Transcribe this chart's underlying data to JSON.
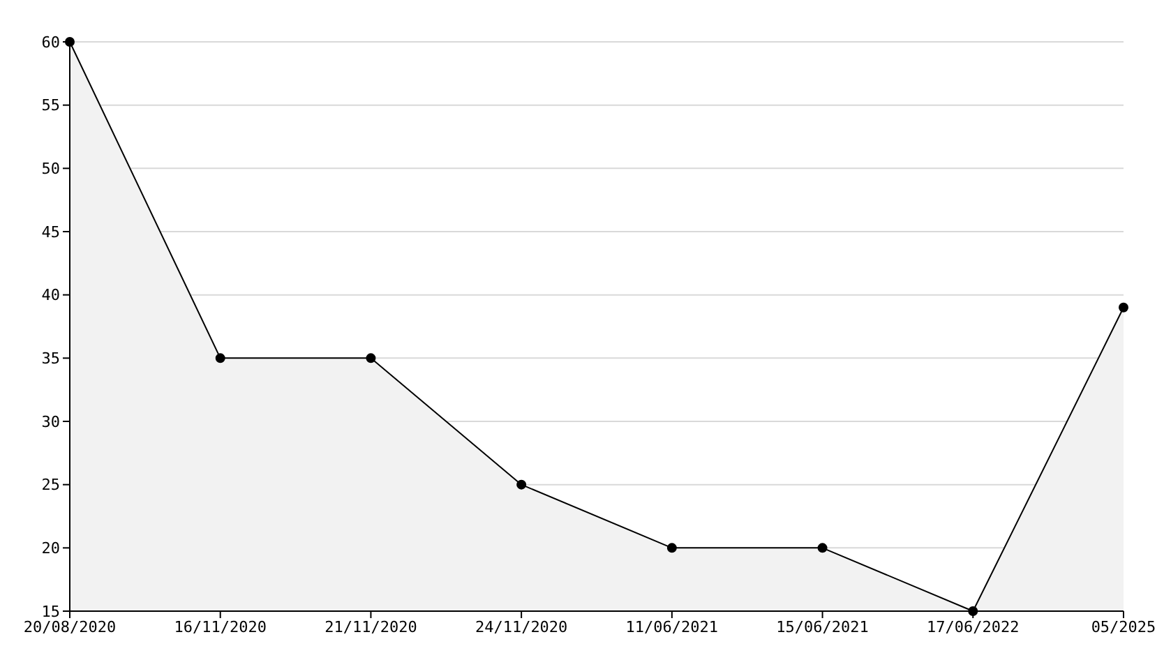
{
  "chart_data": {
    "type": "area",
    "categories": [
      "20/08/2020",
      "16/11/2020",
      "21/11/2020",
      "24/11/2020",
      "11/06/2021",
      "15/06/2021",
      "17/06/2022",
      "05/2025"
    ],
    "series": [
      {
        "color": "#000000",
        "values": [
          60,
          35,
          35,
          25,
          20,
          20,
          15,
          39
        ]
      }
    ],
    "ylim": [
      15,
      60
    ],
    "yticks": [
      15,
      20,
      25,
      30,
      35,
      40,
      45,
      50,
      55,
      60
    ],
    "grid": "y",
    "marker": "circle"
  }
}
